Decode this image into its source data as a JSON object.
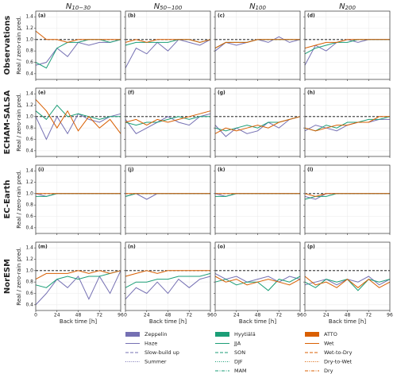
{
  "axes": {
    "xlim": [
      0,
      96
    ],
    "ylim": [
      0.3,
      1.5
    ],
    "xticks": [
      0,
      24,
      48,
      72,
      96
    ],
    "yticks": [
      0.4,
      0.6,
      0.8,
      {
        "value": 1,
        "label": "1.0"
      },
      1.2,
      1.4
    ],
    "x": [
      0,
      12,
      24,
      36,
      48,
      60,
      72,
      84,
      96
    ],
    "reference": 1,
    "xlabel": "Back time [h]",
    "ylabel": "Real / zero-rain pred."
  },
  "columns": [
    {
      "main": "N",
      "sub": "10−30"
    },
    {
      "main": "N",
      "sub": "50−100"
    },
    {
      "main": "N",
      "sub": "100"
    },
    {
      "main": "N",
      "sub": "200"
    }
  ],
  "rows": [
    {
      "label": "Observations",
      "color": "#111111"
    },
    {
      "label": "ECHAM-SALSA",
      "color": "#3a7dbf"
    },
    {
      "label": "EC-Earth",
      "color": "#f0892a"
    },
    {
      "label": "NorESM",
      "color": "#d62728"
    }
  ],
  "legend": [
    {
      "name": "Zeppelin",
      "color": "#7570b3",
      "items": [
        {
          "name": "Haze",
          "dash": "solid"
        },
        {
          "name": "Slow-build up",
          "dash": "dashed"
        },
        {
          "name": "Summer",
          "dash": "dotted"
        }
      ]
    },
    {
      "name": "Hyytiälä",
      "color": "#1b9e77",
      "items": [
        {
          "name": "JJA",
          "dash": "solid"
        },
        {
          "name": "SON",
          "dash": "dashed"
        },
        {
          "name": "DJF",
          "dash": "dotted"
        },
        {
          "name": "MAM",
          "dash": "dashdot"
        }
      ]
    },
    {
      "name": "ATTO",
      "color": "#d95f02",
      "items": [
        {
          "name": "Wet",
          "dash": "solid"
        },
        {
          "name": "Wet-to-Dry",
          "dash": "dashed"
        },
        {
          "name": "Dry-to-Wet",
          "dash": "dotted"
        },
        {
          "name": "Dry",
          "dash": "dashdot"
        }
      ]
    }
  ],
  "chart_data": [
    {
      "type": "line",
      "label": "(a)",
      "series": [
        [
          0.55,
          0.6,
          0.85,
          0.7,
          0.95,
          0.9,
          0.95,
          0.95,
          1.0
        ],
        [
          0.6,
          0.5,
          0.85,
          0.95,
          0.95,
          1.0,
          1.0,
          0.95,
          1.0
        ],
        [
          1.15,
          1.0,
          1.0,
          0.95,
          1.0,
          1.0,
          1.0,
          1.0,
          1.0
        ]
      ]
    },
    {
      "type": "line",
      "label": "(b)",
      "series": [
        [
          0.5,
          0.85,
          0.75,
          0.95,
          0.8,
          1.0,
          0.95,
          0.9,
          1.0
        ],
        [
          0.9,
          0.95,
          0.95,
          0.95,
          0.95,
          1.0,
          1.0,
          0.95,
          1.0
        ],
        [
          0.95,
          1.0,
          0.95,
          1.0,
          1.0,
          1.0,
          1.0,
          0.95,
          1.0
        ]
      ]
    },
    {
      "type": "line",
      "label": "(c)",
      "series": [
        [
          0.8,
          0.95,
          0.9,
          0.95,
          1.0,
          0.95,
          1.05,
          0.95,
          1.0
        ],
        [
          0.85,
          0.95,
          0.95,
          0.95,
          1.0,
          1.0,
          1.0,
          1.0,
          1.0
        ],
        [
          0.85,
          0.95,
          0.95,
          0.95,
          1.0,
          1.0,
          1.0,
          1.0,
          1.0
        ]
      ]
    },
    {
      "type": "line",
      "label": "(d)",
      "series": [
        [
          0.55,
          0.9,
          0.8,
          0.95,
          1.0,
          0.95,
          1.0,
          1.0,
          1.0
        ],
        [
          0.75,
          0.85,
          0.9,
          0.95,
          0.95,
          1.0,
          1.0,
          1.0,
          1.0
        ],
        [
          0.85,
          0.9,
          0.95,
          0.95,
          1.0,
          1.0,
          1.0,
          1.0,
          1.0
        ]
      ]
    },
    {
      "type": "line",
      "label": "(e)",
      "series": [
        [
          1.0,
          0.6,
          1.0,
          0.7,
          1.05,
          0.95,
          0.9,
          1.0,
          1.05
        ],
        [
          1.1,
          0.95,
          1.2,
          1.0,
          1.05,
          1.0,
          0.95,
          1.0,
          1.0
        ],
        [
          1.3,
          1.1,
          0.8,
          1.1,
          0.75,
          1.0,
          0.8,
          0.95,
          0.7
        ]
      ]
    },
    {
      "type": "line",
      "label": "(f)",
      "series": [
        [
          0.95,
          0.7,
          0.8,
          0.9,
          1.0,
          0.9,
          0.85,
          1.0,
          1.05
        ],
        [
          0.9,
          0.85,
          0.9,
          0.9,
          0.95,
          1.0,
          0.95,
          1.0,
          1.0
        ],
        [
          0.9,
          0.95,
          0.85,
          0.95,
          0.9,
          0.95,
          1.0,
          1.05,
          1.1
        ]
      ]
    },
    {
      "type": "line",
      "label": "(g)",
      "series": [
        [
          0.85,
          0.65,
          0.8,
          0.7,
          0.75,
          0.9,
          0.8,
          0.95,
          1.0
        ],
        [
          0.8,
          0.75,
          0.8,
          0.85,
          0.8,
          0.9,
          0.9,
          0.95,
          1.0
        ],
        [
          0.7,
          0.8,
          0.75,
          0.8,
          0.85,
          0.8,
          0.9,
          0.95,
          1.0
        ]
      ]
    },
    {
      "type": "line",
      "label": "(h)",
      "series": [
        [
          0.75,
          0.85,
          0.8,
          0.75,
          0.85,
          0.9,
          0.9,
          0.95,
          0.95
        ],
        [
          0.8,
          0.75,
          0.85,
          0.8,
          0.9,
          0.9,
          0.95,
          0.95,
          1.0
        ],
        [
          0.8,
          0.75,
          0.8,
          0.85,
          0.85,
          0.9,
          0.9,
          1.0,
          1.0
        ]
      ]
    },
    {
      "type": "line",
      "label": "(i)",
      "series": [
        [
          1.0,
          0.95,
          1.0,
          1.0,
          1.0,
          1.0,
          1.0,
          1.0,
          1.0
        ],
        [
          0.95,
          0.95,
          1.0,
          1.0,
          1.0,
          1.0,
          1.0,
          1.0,
          1.0
        ],
        [
          1.0,
          1.0,
          1.0,
          1.0,
          1.0,
          1.0,
          1.0,
          1.0,
          1.0
        ]
      ]
    },
    {
      "type": "line",
      "label": "(j)",
      "series": [
        [
          0.95,
          1.0,
          0.9,
          1.0,
          1.0,
          1.0,
          1.0,
          1.0,
          1.0
        ],
        [
          0.95,
          1.0,
          1.0,
          1.0,
          1.0,
          1.0,
          1.0,
          1.0,
          1.0
        ],
        [
          1.0,
          1.0,
          1.0,
          1.0,
          1.0,
          1.0,
          1.0,
          1.0,
          1.0
        ]
      ]
    },
    {
      "type": "line",
      "label": "(k)",
      "series": [
        [
          1.0,
          0.95,
          1.0,
          1.0,
          1.0,
          1.0,
          1.0,
          1.0,
          1.0
        ],
        [
          0.95,
          0.95,
          1.0,
          1.0,
          1.0,
          1.0,
          1.0,
          1.0,
          1.0
        ],
        [
          1.0,
          1.0,
          1.0,
          1.0,
          1.0,
          1.0,
          1.0,
          1.0,
          1.0
        ]
      ]
    },
    {
      "type": "line",
      "label": "(l)",
      "series": [
        [
          0.95,
          0.9,
          1.0,
          1.0,
          1.0,
          1.0,
          1.0,
          1.0,
          1.0
        ],
        [
          0.9,
          0.95,
          0.95,
          1.0,
          1.0,
          1.0,
          1.0,
          1.0,
          1.0
        ],
        [
          1.0,
          0.95,
          1.0,
          1.0,
          1.0,
          1.0,
          1.0,
          1.0,
          1.0
        ]
      ]
    },
    {
      "type": "line",
      "label": "(m)",
      "series": [
        [
          0.4,
          0.6,
          0.85,
          0.7,
          0.9,
          0.5,
          0.9,
          0.6,
          1.0
        ],
        [
          0.75,
          0.7,
          0.85,
          0.9,
          0.85,
          0.9,
          0.9,
          0.95,
          1.0
        ],
        [
          0.85,
          0.95,
          0.95,
          0.95,
          1.0,
          0.95,
          1.0,
          0.95,
          1.0
        ]
      ]
    },
    {
      "type": "line",
      "label": "(n)",
      "series": [
        [
          0.5,
          0.7,
          0.6,
          0.8,
          0.6,
          0.85,
          0.7,
          0.85,
          0.9
        ],
        [
          0.7,
          0.8,
          0.8,
          0.85,
          0.85,
          0.9,
          0.9,
          0.9,
          0.95
        ],
        [
          0.9,
          0.95,
          1.0,
          0.95,
          1.0,
          1.0,
          1.0,
          1.0,
          1.0
        ]
      ]
    },
    {
      "type": "line",
      "label": "(o)",
      "series": [
        [
          0.95,
          0.85,
          0.9,
          0.8,
          0.85,
          0.9,
          0.8,
          0.9,
          0.85
        ],
        [
          0.8,
          0.85,
          0.75,
          0.8,
          0.8,
          0.65,
          0.85,
          0.8,
          0.9
        ],
        [
          0.9,
          0.8,
          0.85,
          0.75,
          0.8,
          0.85,
          0.8,
          0.75,
          0.85
        ]
      ]
    },
    {
      "type": "line",
      "label": "(p)",
      "series": [
        [
          0.75,
          0.8,
          0.85,
          0.75,
          0.85,
          0.8,
          0.9,
          0.75,
          0.85
        ],
        [
          0.8,
          0.7,
          0.85,
          0.8,
          0.85,
          0.65,
          0.85,
          0.8,
          0.85
        ],
        [
          0.9,
          0.75,
          0.8,
          0.7,
          0.85,
          0.7,
          0.85,
          0.7,
          0.8
        ]
      ]
    }
  ]
}
